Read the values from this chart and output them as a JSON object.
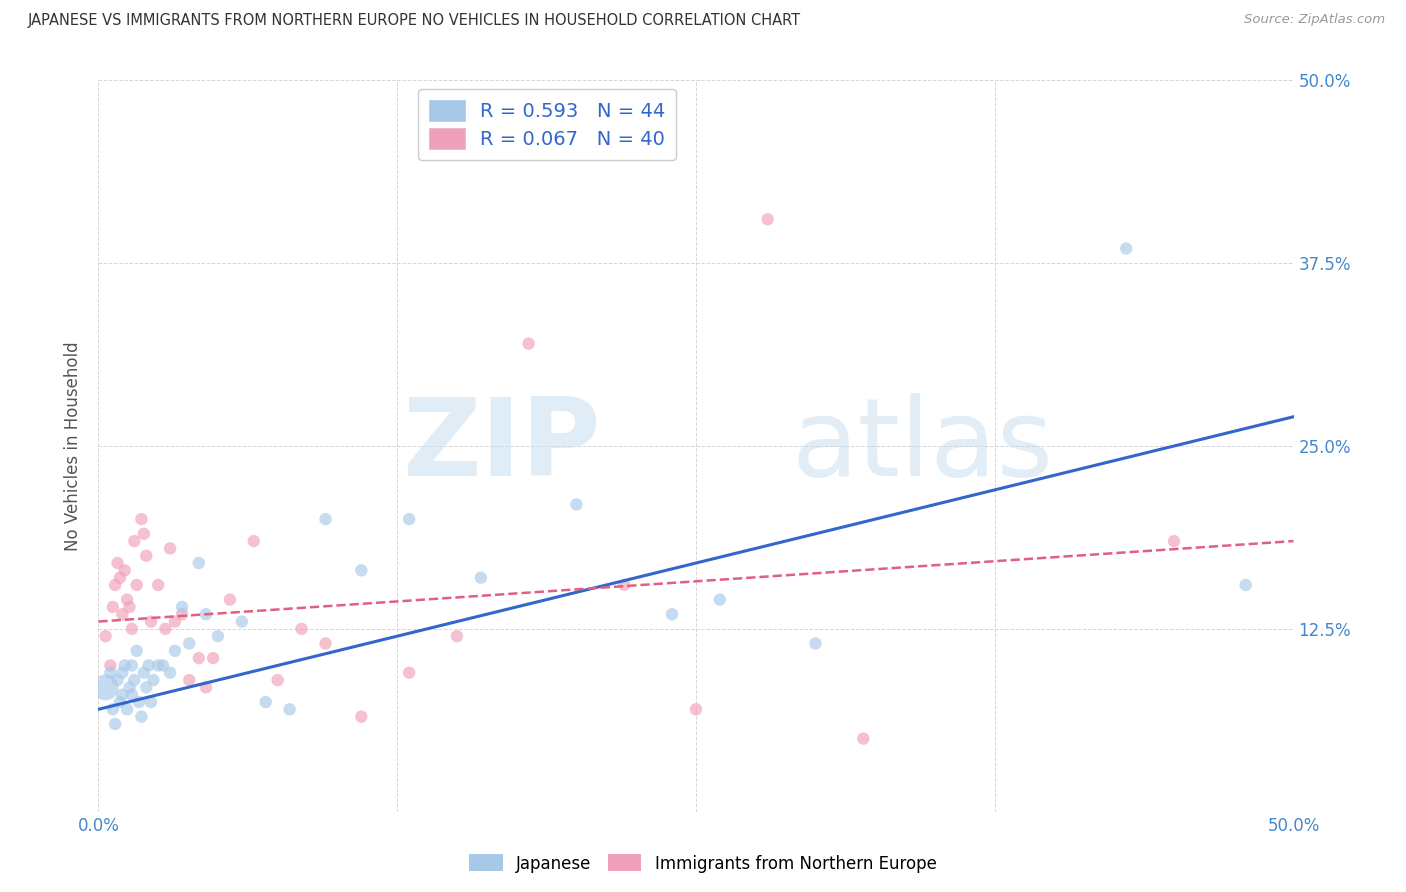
{
  "title": "JAPANESE VS IMMIGRANTS FROM NORTHERN EUROPE NO VEHICLES IN HOUSEHOLD CORRELATION CHART",
  "source": "Source: ZipAtlas.com",
  "ylabel": "No Vehicles in Household",
  "xlim": [
    0.0,
    0.5
  ],
  "ylim": [
    0.0,
    0.5
  ],
  "xticks": [
    0.0,
    0.125,
    0.25,
    0.375,
    0.5
  ],
  "yticks": [
    0.0,
    0.125,
    0.25,
    0.375,
    0.5
  ],
  "xtick_labels": [
    "0.0%",
    "",
    "",
    "",
    "50.0%"
  ],
  "ytick_labels_right": [
    "",
    "12.5%",
    "25.0%",
    "37.5%",
    "50.0%"
  ],
  "blue_color": "#A8C8E8",
  "pink_color": "#F0A0B8",
  "blue_line_color": "#3366CC",
  "pink_line_color": "#E06080",
  "legend_blue_R": "R = 0.593",
  "legend_blue_N": "N = 44",
  "legend_pink_R": "R = 0.067",
  "legend_pink_N": "N = 40",
  "blue_scatter_x": [
    0.003,
    0.005,
    0.006,
    0.007,
    0.008,
    0.009,
    0.01,
    0.01,
    0.011,
    0.012,
    0.013,
    0.014,
    0.014,
    0.015,
    0.016,
    0.017,
    0.018,
    0.019,
    0.02,
    0.021,
    0.022,
    0.023,
    0.025,
    0.027,
    0.03,
    0.032,
    0.035,
    0.038,
    0.042,
    0.045,
    0.05,
    0.06,
    0.07,
    0.08,
    0.095,
    0.11,
    0.13,
    0.16,
    0.2,
    0.24,
    0.26,
    0.3,
    0.43,
    0.48
  ],
  "blue_scatter_y": [
    0.085,
    0.095,
    0.07,
    0.06,
    0.09,
    0.075,
    0.08,
    0.095,
    0.1,
    0.07,
    0.085,
    0.08,
    0.1,
    0.09,
    0.11,
    0.075,
    0.065,
    0.095,
    0.085,
    0.1,
    0.075,
    0.09,
    0.1,
    0.1,
    0.095,
    0.11,
    0.14,
    0.115,
    0.17,
    0.135,
    0.12,
    0.13,
    0.075,
    0.07,
    0.2,
    0.165,
    0.2,
    0.16,
    0.21,
    0.135,
    0.145,
    0.115,
    0.385,
    0.155
  ],
  "blue_scatter_s": [
    350,
    80,
    80,
    80,
    80,
    80,
    80,
    80,
    80,
    80,
    80,
    80,
    80,
    80,
    80,
    80,
    80,
    80,
    80,
    80,
    80,
    80,
    80,
    80,
    80,
    80,
    80,
    80,
    80,
    80,
    80,
    80,
    80,
    80,
    80,
    80,
    80,
    80,
    80,
    80,
    80,
    80,
    80,
    80
  ],
  "pink_scatter_x": [
    0.003,
    0.005,
    0.006,
    0.007,
    0.008,
    0.009,
    0.01,
    0.011,
    0.012,
    0.013,
    0.014,
    0.015,
    0.016,
    0.018,
    0.019,
    0.02,
    0.022,
    0.025,
    0.028,
    0.03,
    0.032,
    0.035,
    0.038,
    0.042,
    0.045,
    0.048,
    0.055,
    0.065,
    0.075,
    0.085,
    0.095,
    0.11,
    0.13,
    0.15,
    0.18,
    0.22,
    0.25,
    0.28,
    0.32,
    0.45
  ],
  "pink_scatter_y": [
    0.12,
    0.1,
    0.14,
    0.155,
    0.17,
    0.16,
    0.135,
    0.165,
    0.145,
    0.14,
    0.125,
    0.185,
    0.155,
    0.2,
    0.19,
    0.175,
    0.13,
    0.155,
    0.125,
    0.18,
    0.13,
    0.135,
    0.09,
    0.105,
    0.085,
    0.105,
    0.145,
    0.185,
    0.09,
    0.125,
    0.115,
    0.065,
    0.095,
    0.12,
    0.32,
    0.155,
    0.07,
    0.405,
    0.05,
    0.185
  ],
  "pink_scatter_s": [
    80,
    80,
    80,
    80,
    80,
    80,
    80,
    80,
    80,
    80,
    80,
    80,
    80,
    80,
    80,
    80,
    80,
    80,
    80,
    80,
    80,
    80,
    80,
    80,
    80,
    80,
    80,
    80,
    80,
    80,
    80,
    80,
    80,
    80,
    80,
    80,
    80,
    80,
    80,
    80
  ],
  "blue_line_x": [
    0.0,
    0.5
  ],
  "blue_line_y": [
    0.07,
    0.27
  ],
  "pink_line_x": [
    0.0,
    0.5
  ],
  "pink_line_y": [
    0.13,
    0.185
  ],
  "grid_color": "#CCCCCC",
  "background_color": "#FFFFFF",
  "title_color": "#333333",
  "source_color": "#999999",
  "tick_label_color": "#4488CC",
  "ylabel_color": "#555555"
}
